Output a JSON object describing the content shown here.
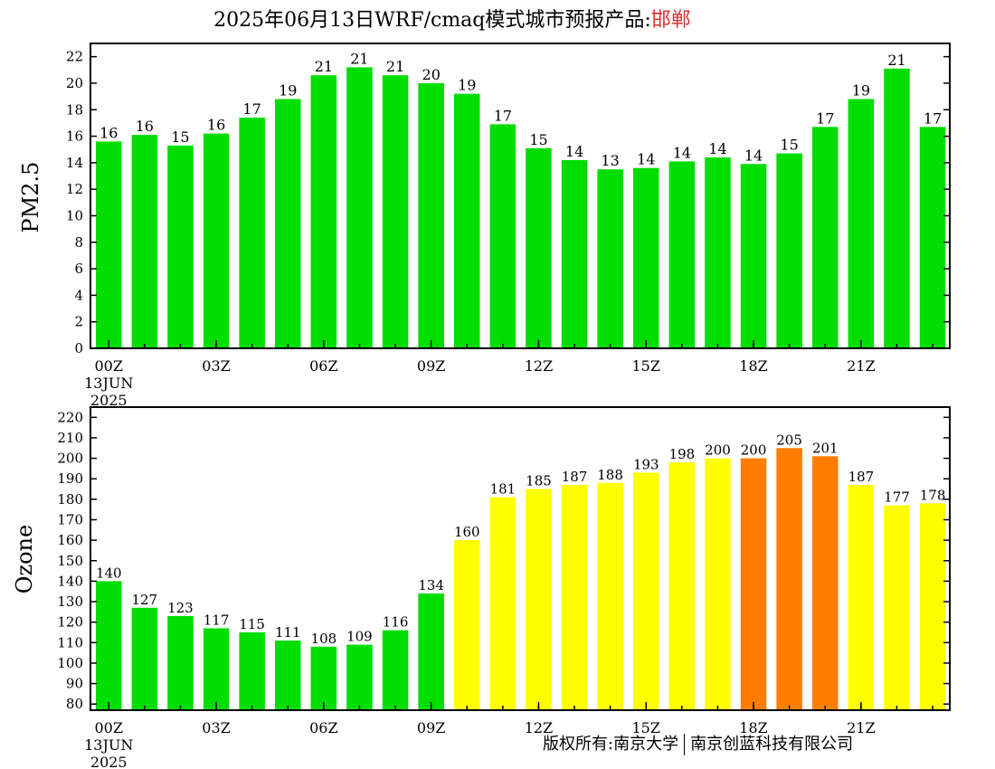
{
  "title": {
    "text": "2025年06月13日WRF/cmaq模式城市预报产品:",
    "city": "邯郸"
  },
  "footer": {
    "left": "版权所有:南京大学",
    "right": "南京创蓝科技有限公司"
  },
  "colors": {
    "good": "#00dd00",
    "moderate": "#ffff00",
    "unhealthy_sensitive": "#ff7e00"
  },
  "chart_data": [
    {
      "type": "bar",
      "ylabel": "PM2.5",
      "ylim": [
        0,
        23
      ],
      "yticks": [
        0,
        2,
        4,
        6,
        8,
        10,
        12,
        14,
        16,
        18,
        20,
        22
      ],
      "x_tick_labels": [
        "00Z",
        "03Z",
        "06Z",
        "09Z",
        "12Z",
        "15Z",
        "18Z",
        "21Z"
      ],
      "x_tick_hours": [
        0,
        3,
        6,
        9,
        12,
        15,
        18,
        21
      ],
      "date_label": [
        "13JUN",
        "2025"
      ],
      "hours": [
        0,
        1,
        2,
        3,
        4,
        5,
        6,
        7,
        8,
        9,
        10,
        11,
        12,
        13,
        14,
        15,
        16,
        17,
        18,
        19,
        20,
        21,
        22,
        23
      ],
      "values": [
        15.6,
        16.1,
        15.3,
        16.2,
        17.4,
        18.8,
        20.6,
        21.2,
        20.6,
        20.0,
        19.2,
        16.9,
        15.1,
        14.2,
        13.5,
        13.6,
        14.1,
        14.4,
        13.9,
        14.7,
        16.7,
        18.8,
        21.1,
        16.7
      ],
      "labels": [
        "16",
        "16",
        "15",
        "16",
        "17",
        "19",
        "21",
        "21",
        "21",
        "20",
        "19",
        "17",
        "15",
        "14",
        "13",
        "14",
        "14",
        "14",
        "14",
        "15",
        "17",
        "19",
        "21",
        "17"
      ],
      "bar_colors": [
        "good",
        "good",
        "good",
        "good",
        "good",
        "good",
        "good",
        "good",
        "good",
        "good",
        "good",
        "good",
        "good",
        "good",
        "good",
        "good",
        "good",
        "good",
        "good",
        "good",
        "good",
        "good",
        "good",
        "good"
      ]
    },
    {
      "type": "bar",
      "ylabel": "Ozone",
      "ylim": [
        77,
        225
      ],
      "yticks": [
        80,
        90,
        100,
        110,
        120,
        130,
        140,
        150,
        160,
        170,
        180,
        190,
        200,
        210,
        220
      ],
      "x_tick_labels": [
        "00Z",
        "03Z",
        "06Z",
        "09Z",
        "12Z",
        "15Z",
        "18Z",
        "21Z"
      ],
      "x_tick_hours": [
        0,
        3,
        6,
        9,
        12,
        15,
        18,
        21
      ],
      "date_label": [
        "13JUN",
        "2025"
      ],
      "hours": [
        0,
        1,
        2,
        3,
        4,
        5,
        6,
        7,
        8,
        9,
        10,
        11,
        12,
        13,
        14,
        15,
        16,
        17,
        18,
        19,
        20,
        21,
        22,
        23
      ],
      "values": [
        140,
        127,
        123,
        117,
        115,
        111,
        108,
        109,
        116,
        134,
        160,
        181,
        185,
        187,
        188,
        193,
        198,
        200,
        200,
        205,
        201,
        187,
        177,
        178
      ],
      "labels": [
        "140",
        "127",
        "123",
        "117",
        "115",
        "111",
        "108",
        "109",
        "116",
        "134",
        "160",
        "181",
        "185",
        "187",
        "188",
        "193",
        "198",
        "200",
        "200",
        "205",
        "201",
        "187",
        "177",
        "178"
      ],
      "bar_colors": [
        "good",
        "good",
        "good",
        "good",
        "good",
        "good",
        "good",
        "good",
        "good",
        "good",
        "moderate",
        "moderate",
        "moderate",
        "moderate",
        "moderate",
        "moderate",
        "moderate",
        "moderate",
        "unhealthy_sensitive",
        "unhealthy_sensitive",
        "unhealthy_sensitive",
        "moderate",
        "moderate",
        "moderate"
      ]
    }
  ]
}
